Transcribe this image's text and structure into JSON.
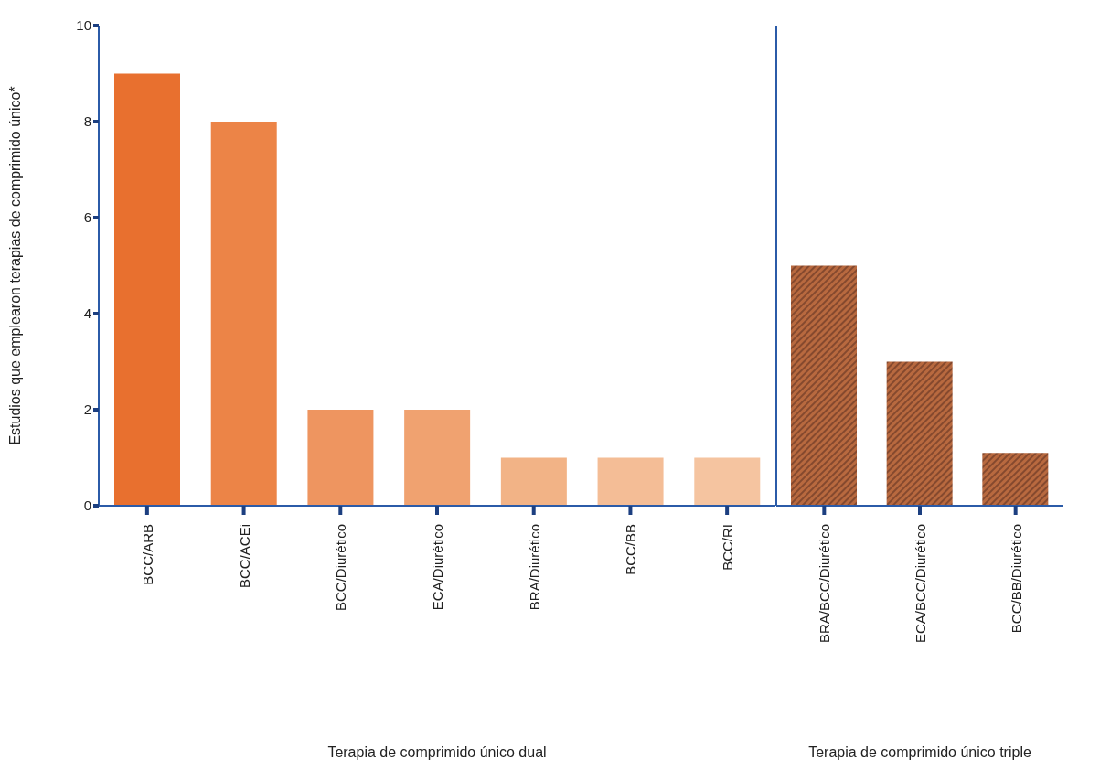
{
  "chart_data": [
    {
      "type": "bar",
      "xlabel": "Terapia de comprimido único dual",
      "ylabel": "Estudios que emplearon terapias de comprimido único*",
      "categories": [
        "BCC/ARB",
        "BCC/ACEi",
        "BCC/Diurético",
        "ECA/Diurético",
        "BRA/Diurético",
        "BCC/BB",
        "BCC/RI"
      ],
      "values": [
        9,
        8,
        2,
        2,
        1,
        1,
        1
      ],
      "colors": [
        "#e8702f",
        "#ec8447",
        "#ee9560",
        "#f0a270",
        "#f2b386",
        "#f4bd96",
        "#f5c4a0"
      ],
      "ylim": [
        0,
        10
      ],
      "yticks": [
        0,
        2,
        4,
        6,
        8,
        10
      ],
      "grid": false
    },
    {
      "type": "bar",
      "xlabel": "Terapia de comprimido único triple",
      "categories": [
        "BRA/BCC/Diurético",
        "ECA/BCC/Diurético",
        "BCC/BB/Diurético"
      ],
      "values": [
        5,
        3,
        1.1
      ],
      "colors": [
        "#b8693f",
        "#b8693f",
        "#b8693f"
      ],
      "ylim": [
        0,
        10
      ],
      "yticks": [
        0,
        2,
        4,
        6,
        8,
        10
      ],
      "tick_labels": "x",
      "grid": false
    }
  ]
}
